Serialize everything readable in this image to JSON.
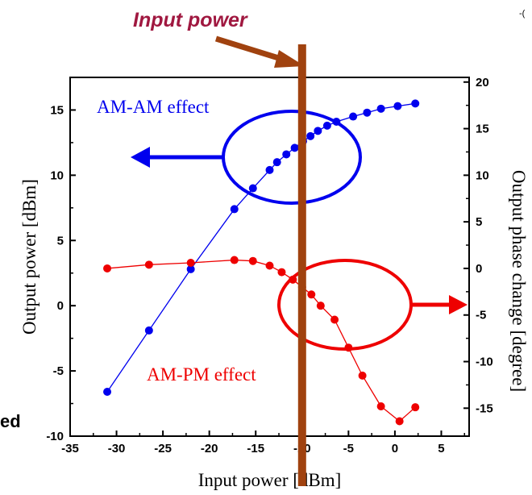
{
  "chart_data": {
    "type": "line",
    "xlabel": "Input power [dBm]",
    "ylabel_left": "Output power [dBm]",
    "ylabel_right": "Output phase change [degree]",
    "xlim": [
      -35,
      8
    ],
    "ylim_left": [
      -10,
      17.5
    ],
    "ylim_right": [
      -18,
      20.5
    ],
    "x_ticks": [
      -35,
      -30,
      -25,
      -20,
      -15,
      -10,
      -5,
      0,
      5
    ],
    "y_left_ticks": [
      -10,
      -5,
      0,
      5,
      10,
      15
    ],
    "y_right_ticks": [
      -15,
      -10,
      -5,
      0,
      5,
      10,
      15,
      20
    ],
    "grid": false,
    "series": [
      {
        "name": "AM-AM effect",
        "axis": "left",
        "color": "#0000ee",
        "x": [
          -31,
          -26.5,
          -22,
          -17.3,
          -15.3,
          -13.5,
          -12.7,
          -11.7,
          -10.8,
          -9.9,
          -9.1,
          -8.3,
          -7.3,
          -6.3,
          -4.5,
          -3.0,
          -1.5,
          0.3,
          2.2
        ],
        "y": [
          -6.6,
          -1.9,
          2.8,
          7.4,
          9.0,
          10.4,
          11.0,
          11.6,
          12.1,
          12.6,
          13.0,
          13.4,
          13.8,
          14.1,
          14.5,
          14.8,
          15.1,
          15.3,
          15.5
        ]
      },
      {
        "name": "AM-PM effect",
        "axis": "right",
        "color": "#ee0000",
        "x": [
          -31,
          -26.5,
          -22,
          -17.3,
          -15.3,
          -13.5,
          -12.2,
          -11,
          -10,
          -9,
          -8,
          -6.5,
          -5,
          -3.5,
          -1.5,
          0.5,
          2.2
        ],
        "y": [
          0,
          0.4,
          0.6,
          0.9,
          0.8,
          0.3,
          -0.4,
          -1.2,
          -2,
          -2.8,
          -4,
          -5.5,
          -8.5,
          -11.5,
          -14.8,
          -16.4,
          -14.9
        ]
      }
    ],
    "annotations": {
      "input_marker_label": "Input power",
      "input_marker_x": -10,
      "am_am_label": "AM-AM effect",
      "am_pm_label": "AM-PM effect",
      "cropped_left_text": "ed",
      "cropped_top_right_text": "-("
    }
  }
}
